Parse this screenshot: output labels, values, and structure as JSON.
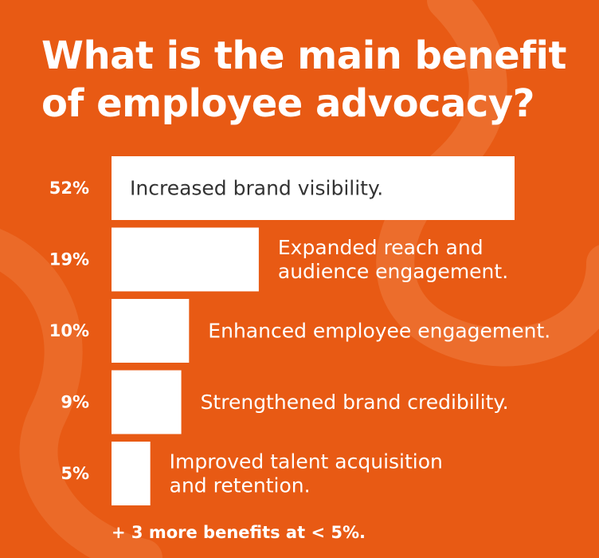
{
  "title": "What is the main benefit of employee advocacy?",
  "footnote": "+ 3 more benefits at < 5%.",
  "colors": {
    "background": "#e85a14",
    "bar": "#ffffff",
    "label_on_bar": "#333333",
    "label_off_bar": "#ffffff",
    "decoration": "#ee7a3c"
  },
  "chart_data": {
    "type": "bar",
    "orientation": "horizontal",
    "title": "What is the main benefit of employee advocacy?",
    "unit": "%",
    "categories": [
      [
        "Increased brand visibility."
      ],
      [
        "Expanded reach and",
        "audience engagement."
      ],
      [
        "Enhanced employee engagement."
      ],
      [
        "Strengthened brand credibility."
      ],
      [
        "Improved talent acquisition",
        "and retention."
      ]
    ],
    "values": [
      52,
      19,
      10,
      9,
      5
    ],
    "value_labels": [
      "52%",
      "19%",
      "10%",
      "9%",
      "5%"
    ],
    "xlim": [
      0,
      52
    ],
    "grid": false,
    "legend": "none"
  }
}
